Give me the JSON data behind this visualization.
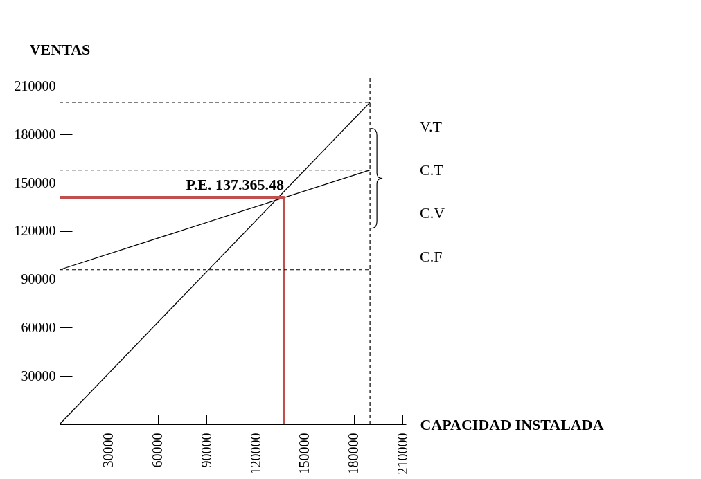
{
  "chart_data": {
    "type": "line",
    "xlabel": "CAPACIDAD INSTALADA",
    "ylabel": "VENTAS",
    "xlim": [
      0,
      212000
    ],
    "ylim": [
      0,
      215000
    ],
    "xticks": [
      30000,
      60000,
      90000,
      120000,
      150000,
      180000,
      210000
    ],
    "yticks": [
      30000,
      60000,
      90000,
      120000,
      150000,
      180000,
      210000
    ],
    "series": [
      {
        "color": "#000000",
        "x": [
          0,
          190000
        ],
        "values": [
          0,
          200000
        ]
      },
      {
        "color": "#000000",
        "x": [
          0,
          190000
        ],
        "values": [
          96000,
          158000
        ]
      },
      {
        "color": "#c0504d",
        "x": [
          0,
          137365.48,
          137365.48
        ],
        "values": [
          141000,
          141000,
          0
        ]
      }
    ],
    "ref_lines": [
      {
        "axis": "x",
        "value": 190000,
        "line_style": "dashed"
      },
      {
        "axis": "y",
        "value": 200000,
        "line_style": "dashed"
      },
      {
        "axis": "y",
        "value": 158000,
        "line_style": "dashed"
      },
      {
        "axis": "y",
        "value": 96000,
        "line_style": "dashed"
      }
    ],
    "annotations": [
      {
        "text": "P.E. 137.365.48",
        "x": 137365.48,
        "y": 141000
      },
      "V.T",
      "C.T",
      "C.V",
      "C.F"
    ],
    "grid": false,
    "marker": "none",
    "line_style": "solid"
  }
}
